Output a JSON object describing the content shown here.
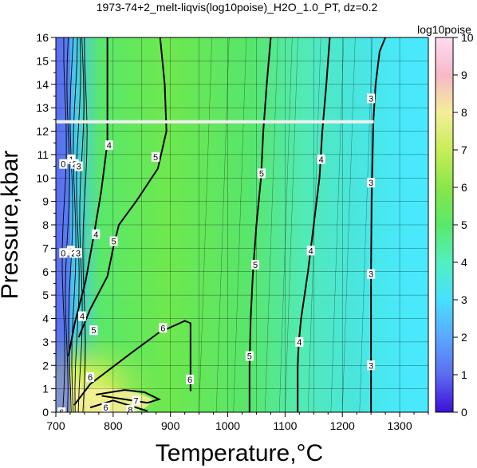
{
  "chart_data": {
    "type": "heatmap",
    "title": "1973-74+2_melt-liqvis(log10poise)_H2O_1.0_PT, dz=0.2",
    "xlabel": "Temperature,°C",
    "ylabel": "Pressure,kbar",
    "xlim": [
      700,
      1350
    ],
    "ylim": [
      0,
      16
    ],
    "xticks": [
      "700",
      "800",
      "900",
      "1000",
      "1100",
      "1200",
      "1300"
    ],
    "yticks": [
      "0",
      "1",
      "2",
      "3",
      "4",
      "5",
      "6",
      "7",
      "8",
      "9",
      "10",
      "11",
      "12",
      "13",
      "14",
      "15",
      "16"
    ],
    "grid": true,
    "colorbar": {
      "label": "log10poise",
      "range": [
        0,
        10
      ],
      "ticks": [
        "0",
        "1",
        "2",
        "3",
        "4",
        "5",
        "6",
        "7",
        "8",
        "9",
        "10"
      ],
      "colors": [
        "#3c10d8",
        "#5c6cf0",
        "#5aa8ff",
        "#48e0ff",
        "#52f0c0",
        "#5ae86a",
        "#8ae64a",
        "#c8ee58",
        "#f4ee98",
        "#f6b8c8",
        "#ffdcf4"
      ]
    },
    "contours": [
      {
        "value": 3,
        "label": "3",
        "points": [
          [
            1250,
            0
          ],
          [
            1250,
            3
          ],
          [
            1250,
            6
          ],
          [
            1251,
            9
          ],
          [
            1254,
            12.4
          ],
          [
            1258,
            14
          ],
          [
            1265,
            15.4
          ],
          [
            1275,
            16
          ]
        ]
      },
      {
        "value": 4,
        "label": "4",
        "points": [
          [
            1122,
            0
          ],
          [
            1122,
            2
          ],
          [
            1124,
            3
          ],
          [
            1128,
            4
          ],
          [
            1140,
            6
          ],
          [
            1150,
            8
          ],
          [
            1160,
            10
          ],
          [
            1165,
            12
          ],
          [
            1172,
            14
          ],
          [
            1178,
            16
          ]
        ]
      },
      {
        "value": 5,
        "label": "5",
        "points": [
          [
            1038,
            0
          ],
          [
            1038,
            2
          ],
          [
            1040,
            4
          ],
          [
            1044,
            6
          ],
          [
            1050,
            8
          ],
          [
            1058,
            10
          ],
          [
            1062,
            12
          ],
          [
            1068,
            14
          ],
          [
            1075,
            16
          ]
        ]
      },
      {
        "value": 5,
        "label": "5",
        "points": [
          [
            740,
            3.2
          ],
          [
            760,
            4.4
          ],
          [
            790,
            5.8
          ],
          [
            800,
            7
          ],
          [
            810,
            8
          ],
          [
            840,
            9
          ],
          [
            878,
            10.4
          ],
          [
            893,
            12
          ],
          [
            890,
            14
          ],
          [
            882,
            16
          ]
        ]
      },
      {
        "value": 4,
        "label": "4",
        "points": [
          [
            722,
            2.4
          ],
          [
            733,
            3.8
          ],
          [
            752,
            5.6
          ],
          [
            768,
            7.8
          ],
          [
            779,
            9.4
          ],
          [
            790,
            11.5
          ],
          [
            790,
            13.5
          ],
          [
            790,
            16
          ]
        ]
      },
      {
        "value": 6,
        "label": "6",
        "points": [
          [
            732,
            0.3
          ],
          [
            760,
            1.2
          ],
          [
            830,
            2.5
          ],
          [
            880,
            3.4
          ],
          [
            925,
            3.9
          ],
          [
            935,
            3.8
          ],
          [
            935,
            2
          ],
          [
            935,
            0.9
          ]
        ]
      },
      {
        "value": 7,
        "label": "7",
        "points": [
          [
            770,
            0.75
          ],
          [
            820,
            0.95
          ],
          [
            855,
            0.85
          ],
          [
            880,
            0.55
          ],
          [
            860,
            0.4
          ],
          [
            820,
            0.55
          ],
          [
            780,
            0.7
          ]
        ]
      },
      {
        "value": 8,
        "label": "8",
        "points": [
          [
            760,
            0.2
          ],
          [
            800,
            0.5
          ],
          [
            840,
            0.2
          ],
          [
            860,
            0.05
          ]
        ]
      }
    ],
    "contour_labels": [
      {
        "text": "3",
        "x": 1250,
        "y": 13.4
      },
      {
        "text": "3",
        "x": 1250,
        "y": 9.8
      },
      {
        "text": "3",
        "x": 1250,
        "y": 5.9
      },
      {
        "text": "3",
        "x": 1250,
        "y": 2
      },
      {
        "text": "4",
        "x": 1163,
        "y": 10.8
      },
      {
        "text": "4",
        "x": 1145,
        "y": 6.9
      },
      {
        "text": "4",
        "x": 1125,
        "y": 3
      },
      {
        "text": "5",
        "x": 1059,
        "y": 10.2
      },
      {
        "text": "5",
        "x": 1048,
        "y": 6.3
      },
      {
        "text": "5",
        "x": 1038,
        "y": 2.4
      },
      {
        "text": "5",
        "x": 874,
        "y": 10.9
      },
      {
        "text": "5",
        "x": 801,
        "y": 7.3
      },
      {
        "text": "5",
        "x": 766,
        "y": 3.5
      },
      {
        "text": "4",
        "x": 793,
        "y": 11.4
      },
      {
        "text": "4",
        "x": 770,
        "y": 7.6
      },
      {
        "text": "4",
        "x": 746,
        "y": 4.1
      },
      {
        "text": "6",
        "x": 887,
        "y": 3.6
      },
      {
        "text": "6",
        "x": 934,
        "y": 1.4
      },
      {
        "text": "6",
        "x": 760,
        "y": 1.5
      },
      {
        "text": "7",
        "x": 840,
        "y": 0.5
      },
      {
        "text": "8",
        "x": 830,
        "y": 0.1
      },
      {
        "text": "0",
        "x": 713,
        "y": 10.6
      },
      {
        "text": "1",
        "x": 727,
        "y": 10.8
      },
      {
        "text": "2",
        "x": 733,
        "y": 10.6
      },
      {
        "text": "3",
        "x": 740,
        "y": 10.5
      },
      {
        "text": "0",
        "x": 713,
        "y": 6.8
      },
      {
        "text": "1",
        "x": 726,
        "y": 6.9
      },
      {
        "text": "2",
        "x": 731,
        "y": 6.8
      },
      {
        "text": "3",
        "x": 739,
        "y": 6.8
      },
      {
        "text": "6",
        "x": 710,
        "y": 0
      },
      {
        "text": "6",
        "x": 787,
        "y": 0.2
      }
    ],
    "missing_band": {
      "y": 12.4,
      "x_range": [
        700,
        1255
      ]
    }
  }
}
